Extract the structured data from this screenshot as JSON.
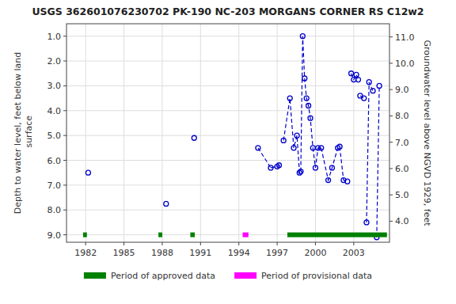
{
  "chart_data": {
    "type": "scatter",
    "title": "USGS 362601076230702 PK-190 NC-203 MORGANS CORNER RS C12w2",
    "ylabel": "Depth to water level, feet below land\n surface",
    "y2label": "Groundwater level above NGVD 1929, feet",
    "xlim": [
      1980.5,
      2005.8
    ],
    "xticks": [
      1982,
      1985,
      1988,
      1991,
      1994,
      1997,
      2000,
      2003
    ],
    "ylim": [
      9.3,
      0.5
    ],
    "yticks": [
      {
        "value": 1.0,
        "label": "1.0"
      },
      {
        "value": 2.0,
        "label": "2.0"
      },
      {
        "value": 3.0,
        "label": "3.0"
      },
      {
        "value": 4.0,
        "label": "4.0"
      },
      {
        "value": 5.0,
        "label": "5.0"
      },
      {
        "value": 6.0,
        "label": "6.0"
      },
      {
        "value": 7.0,
        "label": "7.0"
      },
      {
        "value": 8.0,
        "label": "8.0"
      },
      {
        "value": 9.0,
        "label": "9.0"
      }
    ],
    "y2lim": [
      3.2,
      11.5
    ],
    "y2ticks": [
      {
        "value": 11.0,
        "label": "11.0"
      },
      {
        "value": 10.0,
        "label": "10.0"
      },
      {
        "value": 9.0,
        "label": "9.0"
      },
      {
        "value": 8.0,
        "label": "8.0"
      },
      {
        "value": 7.0,
        "label": "7.0"
      },
      {
        "value": 6.0,
        "label": "6.0"
      },
      {
        "value": 5.0,
        "label": "5.0"
      },
      {
        "value": 4.0,
        "label": "4.0"
      }
    ],
    "grid": true,
    "legend": "bottom",
    "series": [
      {
        "type": "scatter",
        "marker": "circle",
        "color": "#0000cc",
        "x": [
          1982.2,
          1988.3,
          1990.5,
          1995.5,
          1996.5,
          1997.0,
          1997.15,
          1997.5,
          1998.0,
          1998.3,
          1998.55,
          1998.75,
          1998.85,
          1999.0,
          1999.15,
          1999.3,
          1999.45,
          1999.6,
          1999.8,
          2000.0,
          2000.2,
          2000.45,
          2001.0,
          2001.3,
          2001.75,
          2001.9,
          2002.2,
          2002.5,
          2002.8,
          2003.0,
          2003.2,
          2003.35,
          2003.5,
          2003.8,
          2004.0,
          2004.2,
          2004.5,
          2004.8,
          2005.0
        ],
        "values": [
          6.5,
          7.75,
          5.1,
          5.5,
          6.3,
          6.25,
          6.2,
          5.2,
          3.5,
          5.5,
          5.0,
          6.5,
          6.45,
          1.0,
          2.7,
          3.5,
          3.8,
          4.3,
          5.5,
          6.3,
          5.5,
          5.5,
          6.8,
          6.3,
          5.5,
          5.45,
          6.8,
          6.85,
          2.5,
          2.75,
          2.55,
          2.75,
          3.4,
          3.5,
          8.5,
          2.85,
          3.2,
          9.1,
          3.0
        ]
      },
      {
        "type": "line",
        "line_style": "dashed",
        "marker": "none",
        "color": "#0000cc",
        "x": [
          1995.5,
          1996.5
        ],
        "values": [
          5.5,
          6.3
        ]
      },
      {
        "type": "line",
        "line_style": "dashed",
        "marker": "none",
        "color": "#0000cc",
        "x": [
          1996.5,
          1997.0,
          1997.15
        ],
        "values": [
          6.3,
          6.25,
          6.2
        ]
      },
      {
        "type": "line",
        "line_style": "dashed",
        "marker": "none",
        "color": "#0000cc",
        "x": [
          1997.5,
          1998.0,
          1998.3,
          1998.55,
          1998.75,
          1998.85
        ],
        "values": [
          5.2,
          3.5,
          5.5,
          5.0,
          6.5,
          6.45
        ]
      },
      {
        "type": "line",
        "line_style": "dashed",
        "marker": "none",
        "color": "#0000cc",
        "x": [
          1998.85,
          1999.0,
          1999.15,
          1999.3,
          1999.45,
          1999.6,
          1999.8
        ],
        "values": [
          6.45,
          1.0,
          2.7,
          3.5,
          3.8,
          4.3,
          5.5
        ]
      },
      {
        "type": "line",
        "line_style": "dashed",
        "marker": "none",
        "color": "#0000cc",
        "x": [
          1999.8,
          2000.0,
          2000.2,
          2000.45
        ],
        "values": [
          5.5,
          6.3,
          5.5,
          5.5
        ]
      },
      {
        "type": "line",
        "line_style": "dashed",
        "marker": "none",
        "color": "#0000cc",
        "x": [
          2000.45,
          2001.0,
          2001.3,
          2001.75,
          2001.9
        ],
        "values": [
          5.5,
          6.8,
          6.3,
          5.5,
          5.45
        ]
      },
      {
        "type": "line",
        "line_style": "dashed",
        "marker": "none",
        "color": "#0000cc",
        "x": [
          2001.9,
          2002.2,
          2002.5
        ],
        "values": [
          5.45,
          6.8,
          6.85
        ]
      },
      {
        "type": "line",
        "line_style": "dashed",
        "marker": "none",
        "color": "#0000cc",
        "x": [
          2002.8,
          2003.0,
          2003.2,
          2003.35
        ],
        "values": [
          2.5,
          2.75,
          2.55,
          2.75
        ]
      },
      {
        "type": "line",
        "line_style": "dashed",
        "marker": "none",
        "color": "#0000cc",
        "x": [
          2003.5,
          2003.8
        ],
        "values": [
          3.4,
          3.5
        ]
      },
      {
        "type": "line",
        "line_style": "dashed",
        "marker": "none",
        "color": "#0000cc",
        "x": [
          2004.0,
          2004.2,
          2004.5
        ],
        "values": [
          8.5,
          2.85,
          3.2
        ]
      },
      {
        "type": "line",
        "line_style": "dashed",
        "marker": "none",
        "color": "#0000cc",
        "x": [
          2004.8,
          2005.0
        ],
        "values": [
          9.1,
          3.0
        ]
      },
      {
        "name": "Period of approved data",
        "type": "period",
        "color": "#008000",
        "y": 9.0,
        "periods": [
          [
            1981.8,
            1982.1
          ],
          [
            1987.7,
            1988.0
          ],
          [
            1990.2,
            1990.55
          ],
          [
            1997.8,
            2005.6
          ]
        ]
      },
      {
        "name": "Period of provisional data",
        "type": "period",
        "color": "#ff00ff",
        "y": 9.0,
        "periods": [
          [
            1994.3,
            1994.75
          ]
        ]
      }
    ]
  }
}
